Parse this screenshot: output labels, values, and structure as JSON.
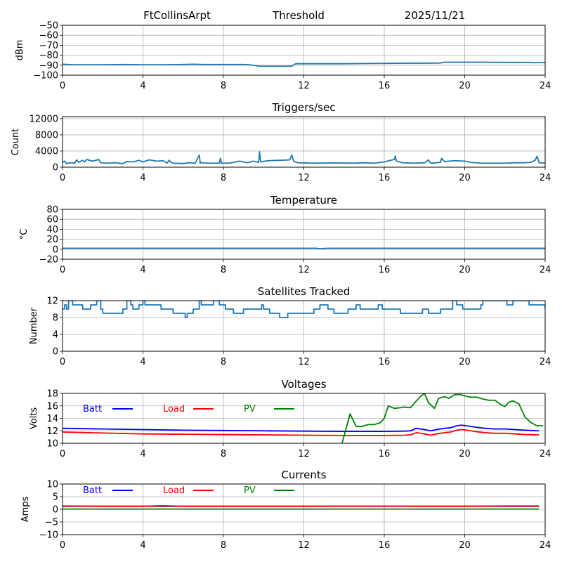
{
  "figure": {
    "header": {
      "station": "FtCollinsArpt",
      "panel_name": "Threshold",
      "date": "2025/11/21"
    }
  },
  "chart_data": [
    {
      "id": "threshold",
      "type": "line",
      "title": "",
      "xlabel": "",
      "ylabel": "dBm",
      "xlim": [
        0,
        24
      ],
      "ylim": [
        -100,
        -50
      ],
      "xticks": [
        0,
        4,
        8,
        12,
        16,
        20,
        24
      ],
      "xtick_labels": [
        "0",
        "4",
        "8",
        "12",
        "16",
        "20",
        "24"
      ],
      "yticks": [
        -100,
        -90,
        -80,
        -70,
        -60,
        -50
      ],
      "ytick_labels": [
        "−100",
        "−90",
        "−80",
        "−70",
        "−60",
        "−50"
      ],
      "grid": true,
      "series": [
        {
          "name": "Threshold",
          "color": "#1f77b4",
          "x": [
            0,
            0.5,
            1,
            2,
            3,
            4,
            5,
            6,
            6.5,
            7,
            8,
            9,
            9.3,
            9.6,
            9.8,
            10,
            11,
            11.4,
            11.6,
            12,
            13,
            14,
            15,
            16,
            17,
            18,
            18.8,
            19,
            20,
            21,
            22,
            23,
            23.5,
            24
          ],
          "y": [
            -89,
            -89.5,
            -89.5,
            -89.5,
            -89.3,
            -89.5,
            -89.5,
            -89.3,
            -89,
            -89.3,
            -89.3,
            -89.3,
            -89.5,
            -90.5,
            -91,
            -91,
            -91,
            -91,
            -88.5,
            -88.5,
            -88.5,
            -88.5,
            -88.3,
            -88.2,
            -88,
            -88,
            -87.8,
            -87,
            -87,
            -87,
            -87.2,
            -87.2,
            -87.5,
            -87.3
          ]
        }
      ]
    },
    {
      "id": "triggers",
      "type": "line",
      "title": "Triggers/sec",
      "xlabel": "",
      "ylabel": "Count",
      "xlim": [
        0,
        24
      ],
      "ylim": [
        0,
        12500
      ],
      "xticks": [
        0,
        4,
        8,
        12,
        16,
        20,
        24
      ],
      "xtick_labels": [
        "0",
        "4",
        "8",
        "12",
        "16",
        "20",
        "24"
      ],
      "yticks": [
        0,
        4000,
        8000,
        12000
      ],
      "ytick_labels": [
        "0",
        "4000",
        "8000",
        "12000"
      ],
      "grid": true,
      "series": [
        {
          "name": "Triggers",
          "color": "#1f77b4",
          "x": [
            0,
            0.1,
            0.2,
            0.4,
            0.6,
            0.7,
            0.8,
            1.0,
            1.1,
            1.2,
            1.5,
            1.8,
            1.9,
            2.2,
            2.6,
            3.0,
            3.2,
            3.5,
            3.8,
            4.0,
            4.3,
            4.7,
            5.0,
            5.2,
            5.3,
            5.4,
            5.5,
            6.0,
            6.3,
            6.6,
            6.8,
            6.85,
            6.9,
            7.2,
            7.8,
            7.85,
            7.9,
            8.3,
            8.8,
            9.2,
            9.5,
            9.75,
            9.8,
            9.85,
            10.2,
            10.8,
            11.3,
            11.4,
            11.5,
            11.7,
            12.5,
            13.5,
            14.5,
            15.0,
            15.5,
            16.0,
            16.3,
            16.5,
            16.55,
            16.6,
            16.9,
            17.5,
            18.0,
            18.2,
            18.3,
            18.5,
            18.8,
            18.85,
            19.0,
            19.5,
            20.0,
            20.3,
            20.8,
            21.5,
            22.0,
            22.5,
            23.0,
            23.3,
            23.5,
            23.6,
            23.7,
            24.0
          ],
          "y": [
            1200,
            1500,
            900,
            1100,
            1000,
            1800,
            1200,
            1700,
            1300,
            1900,
            1500,
            1900,
            1100,
            1000,
            1100,
            900,
            1400,
            1300,
            1700,
            1300,
            1800,
            1500,
            1600,
            1000,
            1700,
            1200,
            1000,
            900,
            1100,
            1000,
            3000,
            1000,
            1100,
            1000,
            1000,
            2200,
            1000,
            1000,
            1500,
            1100,
            1500,
            1200,
            3800,
            1300,
            1600,
            1700,
            1800,
            3000,
            1400,
            1100,
            1000,
            1050,
            1000,
            1100,
            1000,
            1300,
            1700,
            1900,
            2800,
            1500,
            1100,
            1000,
            1100,
            1800,
            1000,
            1050,
            1200,
            2200,
            1400,
            1600,
            1500,
            1200,
            1000,
            1000,
            1000,
            1100,
            1100,
            1200,
            1700,
            2700,
            1100,
            1000
          ]
        }
      ]
    },
    {
      "id": "temperature",
      "type": "line",
      "title": "Temperature",
      "xlabel": "",
      "ylabel": "°C",
      "xlim": [
        0,
        24
      ],
      "ylim": [
        -20,
        80
      ],
      "xticks": [
        0,
        4,
        8,
        12,
        16,
        20,
        24
      ],
      "xtick_labels": [
        "0",
        "4",
        "8",
        "12",
        "16",
        "20",
        "24"
      ],
      "yticks": [
        -20,
        0,
        20,
        40,
        60,
        80
      ],
      "ytick_labels": [
        "−20",
        "0",
        "20",
        "40",
        "60",
        "80"
      ],
      "grid": true,
      "series": [
        {
          "name": "Temperature",
          "color": "#1f77b4",
          "x": [
            0,
            4,
            8,
            12,
            12.6,
            12.8,
            13.2,
            16,
            20,
            24
          ],
          "y": [
            2,
            2,
            2,
            2,
            2,
            1,
            2,
            2,
            2,
            2
          ]
        }
      ]
    },
    {
      "id": "satellites",
      "type": "line",
      "title": "Satellites Tracked",
      "xlabel": "",
      "ylabel": "Number",
      "xlim": [
        0,
        24
      ],
      "ylim": [
        0,
        12
      ],
      "xticks": [
        0,
        4,
        8,
        12,
        16,
        20,
        24
      ],
      "xtick_labels": [
        "0",
        "4",
        "8",
        "12",
        "16",
        "20",
        "24"
      ],
      "yticks": [
        0,
        4,
        8,
        12
      ],
      "ytick_labels": [
        "0",
        "4",
        "8",
        "12"
      ],
      "grid": true,
      "step": true,
      "series": [
        {
          "name": "Satellites",
          "color": "#1f77b4",
          "x": [
            0,
            0.1,
            0.2,
            0.3,
            0.5,
            0.8,
            1.0,
            1.4,
            1.7,
            1.9,
            2.0,
            2.2,
            2.8,
            3.0,
            3.2,
            3.4,
            3.5,
            3.8,
            4.0,
            4.1,
            4.5,
            4.6,
            4.9,
            5.0,
            5.4,
            5.5,
            5.7,
            6.1,
            6.2,
            6.5,
            6.8,
            6.9,
            7.1,
            7.5,
            7.8,
            8.0,
            8.1,
            8.3,
            8.5,
            8.7,
            9.0,
            9.5,
            9.9,
            10.0,
            10.3,
            10.8,
            11.1,
            11.2,
            11.5,
            11.7,
            12.0,
            12.5,
            12.8,
            13.0,
            13.2,
            13.5,
            14.0,
            14.2,
            14.6,
            14.8,
            15.3,
            15.7,
            15.9,
            16.1,
            16.5,
            16.8,
            17.0,
            17.4,
            17.6,
            17.9,
            18.2,
            18.6,
            18.8,
            19.0,
            19.4,
            19.6,
            19.9,
            20.1,
            20.6,
            20.8,
            20.9,
            21.4,
            21.9,
            22.1,
            22.4,
            22.6,
            23.2,
            24.0
          ],
          "y": [
            10,
            11,
            10,
            12,
            11,
            11,
            10,
            11,
            12,
            10,
            9,
            9,
            9,
            10,
            12,
            11,
            10,
            11,
            12,
            11,
            11,
            11,
            10,
            10,
            10,
            9,
            9,
            8,
            9,
            10,
            12,
            11,
            11,
            12,
            11,
            11,
            10,
            10,
            9,
            9,
            10,
            10,
            11,
            10,
            9,
            8,
            8,
            9,
            9,
            9,
            9,
            10,
            11,
            11,
            10,
            9,
            9,
            10,
            11,
            10,
            10,
            11,
            10,
            10,
            10,
            9,
            9,
            9,
            9,
            10,
            9,
            9,
            10,
            10,
            12,
            11,
            10,
            10,
            10,
            11,
            12,
            12,
            12,
            11,
            12,
            12,
            11,
            10
          ]
        }
      ]
    },
    {
      "id": "voltages",
      "type": "line",
      "title": "Voltages",
      "xlabel": "",
      "ylabel": "Volts",
      "xlim": [
        0,
        24
      ],
      "ylim": [
        10,
        18
      ],
      "xticks": [
        0,
        4,
        8,
        12,
        16,
        20,
        24
      ],
      "xtick_labels": [
        "0",
        "4",
        "8",
        "12",
        "16",
        "20",
        "24"
      ],
      "yticks": [
        10,
        12,
        14,
        16,
        18
      ],
      "ytick_labels": [
        "10",
        "12",
        "14",
        "16",
        "18"
      ],
      "grid": true,
      "legend": {
        "placement": "inside-top-left-row",
        "entries": [
          "Batt",
          "Load",
          "PV"
        ]
      },
      "series": [
        {
          "name": "Batt",
          "color": "#0000ff",
          "x": [
            0,
            2,
            4,
            6,
            8,
            10,
            12,
            14,
            16,
            17,
            17.3,
            17.6,
            18.0,
            18.3,
            18.6,
            19.0,
            19.3,
            19.6,
            19.8,
            20.0,
            20.3,
            20.6,
            21.0,
            21.5,
            22.0,
            22.5,
            23.0,
            23.7
          ],
          "y": [
            12.4,
            12.3,
            12.2,
            12.1,
            12.05,
            12.0,
            11.95,
            11.9,
            11.9,
            11.95,
            12.0,
            12.4,
            12.2,
            12.0,
            12.2,
            12.4,
            12.5,
            12.8,
            12.9,
            12.85,
            12.7,
            12.55,
            12.4,
            12.3,
            12.3,
            12.2,
            12.1,
            12.0
          ]
        },
        {
          "name": "Load",
          "color": "#ff0000",
          "x": [
            0,
            2,
            4,
            6,
            8,
            10,
            12,
            14,
            16,
            17,
            17.3,
            17.6,
            18.0,
            18.3,
            18.6,
            19.0,
            19.3,
            19.6,
            19.8,
            20.0,
            20.3,
            20.6,
            21.0,
            21.5,
            22.0,
            22.5,
            23.0,
            23.7
          ],
          "y": [
            11.8,
            11.65,
            11.5,
            11.45,
            11.4,
            11.35,
            11.3,
            11.25,
            11.25,
            11.3,
            11.35,
            11.7,
            11.5,
            11.3,
            11.5,
            11.7,
            11.8,
            12.1,
            12.2,
            12.15,
            12.0,
            11.85,
            11.7,
            11.6,
            11.6,
            11.5,
            11.4,
            11.35
          ]
        },
        {
          "name": "PV",
          "color": "#008000",
          "x": [
            13.9,
            14.3,
            14.6,
            14.9,
            15.2,
            15.5,
            15.8,
            16.0,
            16.2,
            16.5,
            16.8,
            17.0,
            17.3,
            17.6,
            17.8,
            18.0,
            18.2,
            18.5,
            18.7,
            19.0,
            19.2,
            19.5,
            19.8,
            20.0,
            20.3,
            20.6,
            20.9,
            21.2,
            21.5,
            21.8,
            22.0,
            22.2,
            22.4,
            22.7,
            23.0,
            23.3,
            23.6,
            23.9
          ],
          "y": [
            10.0,
            14.7,
            12.7,
            12.7,
            13.0,
            13.0,
            13.3,
            14.0,
            16.0,
            15.6,
            15.7,
            15.8,
            15.7,
            16.8,
            17.5,
            18.0,
            16.5,
            15.6,
            17.2,
            17.5,
            17.2,
            17.8,
            17.8,
            17.6,
            17.4,
            17.4,
            17.1,
            16.9,
            16.9,
            16.2,
            15.9,
            16.6,
            16.8,
            16.3,
            14.2,
            13.3,
            12.8,
            12.8
          ]
        }
      ]
    },
    {
      "id": "currents",
      "type": "line",
      "title": "Currents",
      "xlabel": "",
      "ylabel": "Amps",
      "xlim": [
        0,
        24
      ],
      "ylim": [
        -10,
        10
      ],
      "xticks": [
        0,
        4,
        8,
        12,
        16,
        20,
        24
      ],
      "xtick_labels": [
        "0",
        "4",
        "8",
        "12",
        "16",
        "20",
        "24"
      ],
      "yticks": [
        -10,
        -5,
        0,
        5,
        10
      ],
      "ytick_labels": [
        "−10",
        "−5",
        "0",
        "5",
        "10"
      ],
      "grid": true,
      "legend": {
        "placement": "inside-top-left-row",
        "entries": [
          "Batt",
          "Load",
          "PV"
        ]
      },
      "series": [
        {
          "name": "Batt",
          "color": "#0000ff",
          "x": [
            0,
            4,
            8,
            12,
            16,
            20,
            23.7
          ],
          "y": [
            1.2,
            1.2,
            1.2,
            1.2,
            1.2,
            1.2,
            1.2
          ]
        },
        {
          "name": "Load",
          "color": "#ff0000",
          "x": [
            0,
            2,
            4,
            5,
            6,
            8,
            12,
            16,
            18,
            20,
            22,
            23.7
          ],
          "y": [
            1.3,
            1.2,
            1.2,
            1.4,
            1.2,
            1.2,
            1.2,
            1.25,
            1.2,
            1.2,
            1.3,
            1.3
          ]
        },
        {
          "name": "PV",
          "color": "#008000",
          "x": [
            0,
            4,
            8,
            12,
            16,
            20,
            23.7
          ],
          "y": [
            0.1,
            0.1,
            0.1,
            0.1,
            0.1,
            0.1,
            0.1
          ]
        }
      ]
    }
  ]
}
